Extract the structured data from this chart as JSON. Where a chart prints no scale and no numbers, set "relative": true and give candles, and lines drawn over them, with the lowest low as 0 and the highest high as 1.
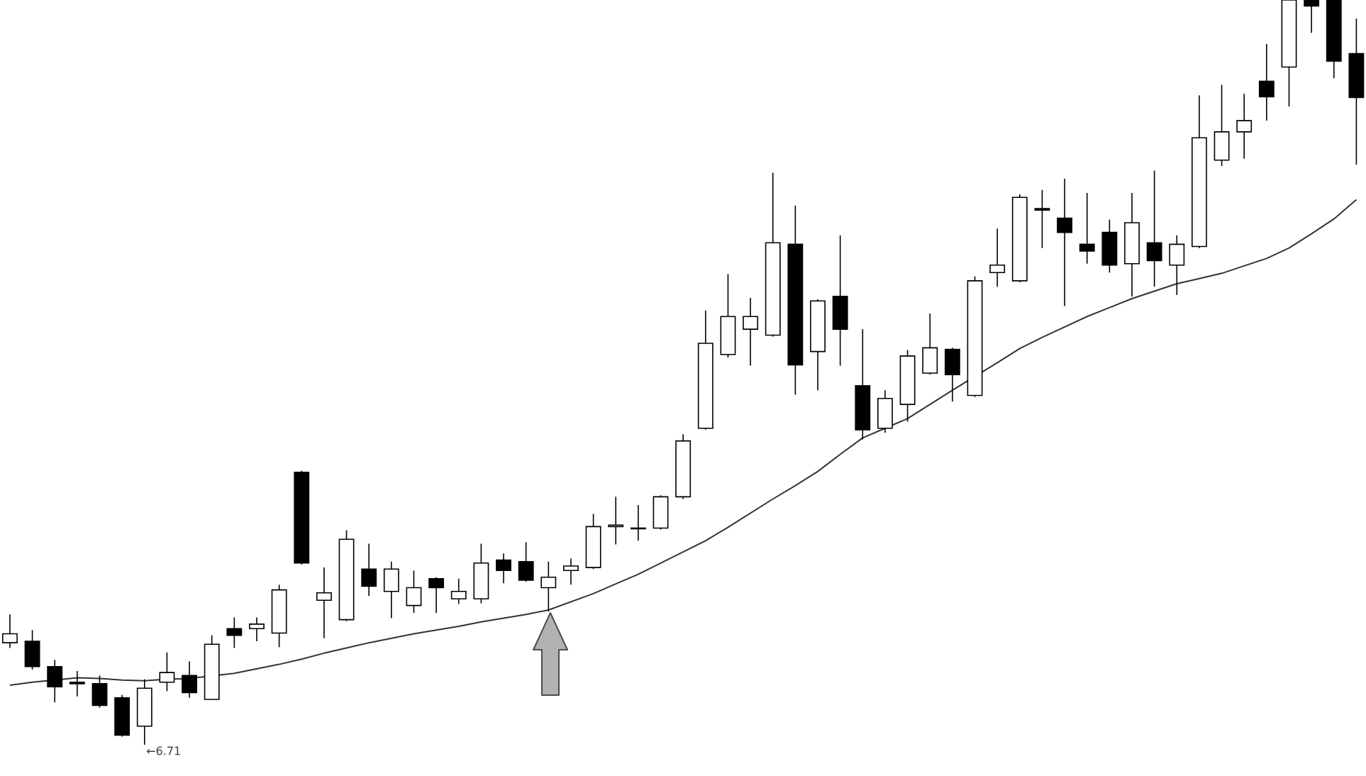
{
  "chart_data": {
    "type": "candlestick",
    "relative": true,
    "categories": [
      null,
      null,
      null,
      null,
      null,
      null,
      null,
      null,
      null,
      null,
      null,
      null,
      null,
      null,
      null,
      null,
      null,
      null,
      null,
      null,
      null,
      null,
      null,
      null,
      null,
      null,
      null,
      null,
      null,
      null,
      null,
      null,
      null,
      null,
      null,
      null,
      null,
      null,
      null,
      null,
      null,
      null,
      null,
      null,
      null,
      null,
      null,
      null,
      null,
      null,
      null,
      null,
      null,
      null,
      null,
      null,
      null,
      null,
      null,
      null,
      null
    ],
    "ohlc": [
      [
        0.137,
        0.175,
        0.13,
        0.149
      ],
      [
        0.139,
        0.154,
        0.101,
        0.105
      ],
      [
        0.105,
        0.114,
        0.057,
        0.078
      ],
      [
        0.084,
        0.099,
        0.065,
        0.082
      ],
      [
        0.082,
        0.093,
        0.05,
        0.053
      ],
      [
        0.063,
        0.067,
        0.011,
        0.013
      ],
      [
        0.025,
        0.088,
        0.0,
        0.076
      ],
      [
        0.084,
        0.124,
        0.072,
        0.097
      ],
      [
        0.093,
        0.112,
        0.063,
        0.07
      ],
      [
        0.061,
        0.147,
        0.061,
        0.135
      ],
      [
        0.156,
        0.171,
        0.13,
        0.147
      ],
      [
        0.156,
        0.171,
        0.139,
        0.162
      ],
      [
        0.15,
        0.215,
        0.131,
        0.208
      ],
      [
        0.366,
        0.368,
        0.242,
        0.244
      ],
      [
        0.194,
        0.238,
        0.143,
        0.204
      ],
      [
        0.168,
        0.288,
        0.166,
        0.276
      ],
      [
        0.236,
        0.27,
        0.2,
        0.213
      ],
      [
        0.206,
        0.246,
        0.17,
        0.236
      ],
      [
        0.187,
        0.234,
        0.177,
        0.211
      ],
      [
        0.223,
        0.225,
        0.177,
        0.211
      ],
      [
        0.196,
        0.223,
        0.189,
        0.206
      ],
      [
        0.196,
        0.27,
        0.19,
        0.244
      ],
      [
        0.248,
        0.257,
        0.217,
        0.234
      ],
      [
        0.246,
        0.272,
        0.219,
        0.221
      ],
      [
        0.211,
        0.246,
        0.179,
        0.225
      ],
      [
        0.234,
        0.25,
        0.215,
        0.24
      ],
      [
        0.238,
        0.31,
        0.236,
        0.293
      ],
      [
        0.293,
        0.333,
        0.269,
        0.295
      ],
      [
        0.291,
        0.322,
        0.274,
        0.29
      ],
      [
        0.291,
        0.335,
        0.289,
        0.333
      ],
      [
        0.333,
        0.417,
        0.33,
        0.408
      ],
      [
        0.425,
        0.583,
        0.423,
        0.539
      ],
      [
        0.524,
        0.632,
        0.52,
        0.575
      ],
      [
        0.558,
        0.6,
        0.509,
        0.575
      ],
      [
        0.55,
        0.768,
        0.548,
        0.674
      ],
      [
        0.672,
        0.724,
        0.47,
        0.51
      ],
      [
        0.528,
        0.598,
        0.476,
        0.596
      ],
      [
        0.602,
        0.684,
        0.509,
        0.558
      ],
      [
        0.482,
        0.558,
        0.41,
        0.423
      ],
      [
        0.425,
        0.476,
        0.419,
        0.465
      ],
      [
        0.457,
        0.53,
        0.434,
        0.522
      ],
      [
        0.499,
        0.579,
        0.497,
        0.533
      ],
      [
        0.531,
        0.533,
        0.461,
        0.497
      ],
      [
        0.469,
        0.629,
        0.467,
        0.623
      ],
      [
        0.634,
        0.693,
        0.615,
        0.644
      ],
      [
        0.623,
        0.739,
        0.621,
        0.735
      ],
      [
        0.72,
        0.745,
        0.667,
        0.718
      ],
      [
        0.707,
        0.76,
        0.589,
        0.688
      ],
      [
        0.672,
        0.741,
        0.646,
        0.663
      ],
      [
        0.688,
        0.705,
        0.634,
        0.644
      ],
      [
        0.646,
        0.741,
        0.602,
        0.701
      ],
      [
        0.674,
        0.771,
        0.615,
        0.65
      ],
      [
        0.644,
        0.684,
        0.604,
        0.672
      ],
      [
        0.669,
        0.872,
        0.667,
        0.815
      ],
      [
        0.785,
        0.886,
        0.777,
        0.823
      ],
      [
        0.823,
        0.874,
        0.787,
        0.838
      ],
      [
        0.891,
        0.941,
        0.838,
        0.87
      ],
      [
        0.91,
        1.0,
        0.857,
        1.0
      ],
      [
        1.0,
        1.0,
        0.956,
        0.992
      ],
      [
        1.0,
        1.0,
        0.895,
        0.918
      ],
      [
        0.928,
        0.975,
        0.779,
        0.869
      ]
    ],
    "series": [
      {
        "type": "line",
        "color": "#333333",
        "values": [
          0.08,
          0.084,
          0.087,
          0.09,
          0.089,
          0.087,
          0.086,
          0.088,
          0.089,
          null,
          0.096,
          0.102,
          0.108,
          0.115,
          0.123,
          0.13,
          0.137,
          0.143,
          0.149,
          0.154,
          0.159,
          0.165,
          0.17,
          0.175,
          0.181,
          0.192,
          0.203,
          0.216,
          0.229,
          0.244,
          0.259,
          0.274,
          0.292,
          0.311,
          0.33,
          0.348,
          0.367,
          0.39,
          0.412,
          0.425,
          0.438,
          0.457,
          0.476,
          null,
          0.513,
          0.532,
          0.547,
          0.561,
          0.575,
          0.587,
          0.599,
          0.609,
          0.619,
          0.626,
          0.633,
          0.643,
          0.653,
          0.667,
          0.686,
          0.706,
          0.732
        ]
      }
    ],
    "annotations": [
      "←6.71"
    ]
  }
}
